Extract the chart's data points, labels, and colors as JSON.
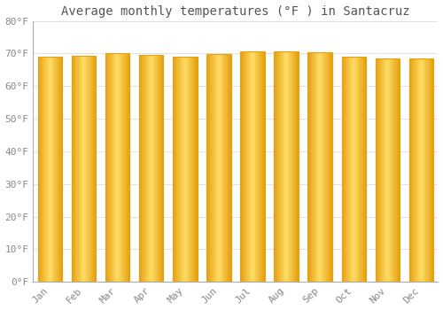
{
  "title": "Average monthly temperatures (°F ) in Santacruz",
  "months": [
    "Jan",
    "Feb",
    "Mar",
    "Apr",
    "May",
    "Jun",
    "Jul",
    "Aug",
    "Sep",
    "Oct",
    "Nov",
    "Dec"
  ],
  "values": [
    69.1,
    69.4,
    70.0,
    69.6,
    69.1,
    69.8,
    70.5,
    70.7,
    70.3,
    68.9,
    68.5,
    68.4
  ],
  "ylim": [
    0,
    80
  ],
  "yticks": [
    0,
    10,
    20,
    30,
    40,
    50,
    60,
    70,
    80
  ],
  "ytick_labels": [
    "0°F",
    "10°F",
    "20°F",
    "30°F",
    "40°F",
    "50°F",
    "60°F",
    "70°F",
    "80°F"
  ],
  "bar_color_center": "#FFD966",
  "bar_color_edge": "#E6A817",
  "background_color": "#FFFFFF",
  "grid_color": "#DDDDDD",
  "title_fontsize": 10,
  "tick_fontsize": 8,
  "title_color": "#555555",
  "tick_color": "#888888",
  "bar_width": 0.72
}
